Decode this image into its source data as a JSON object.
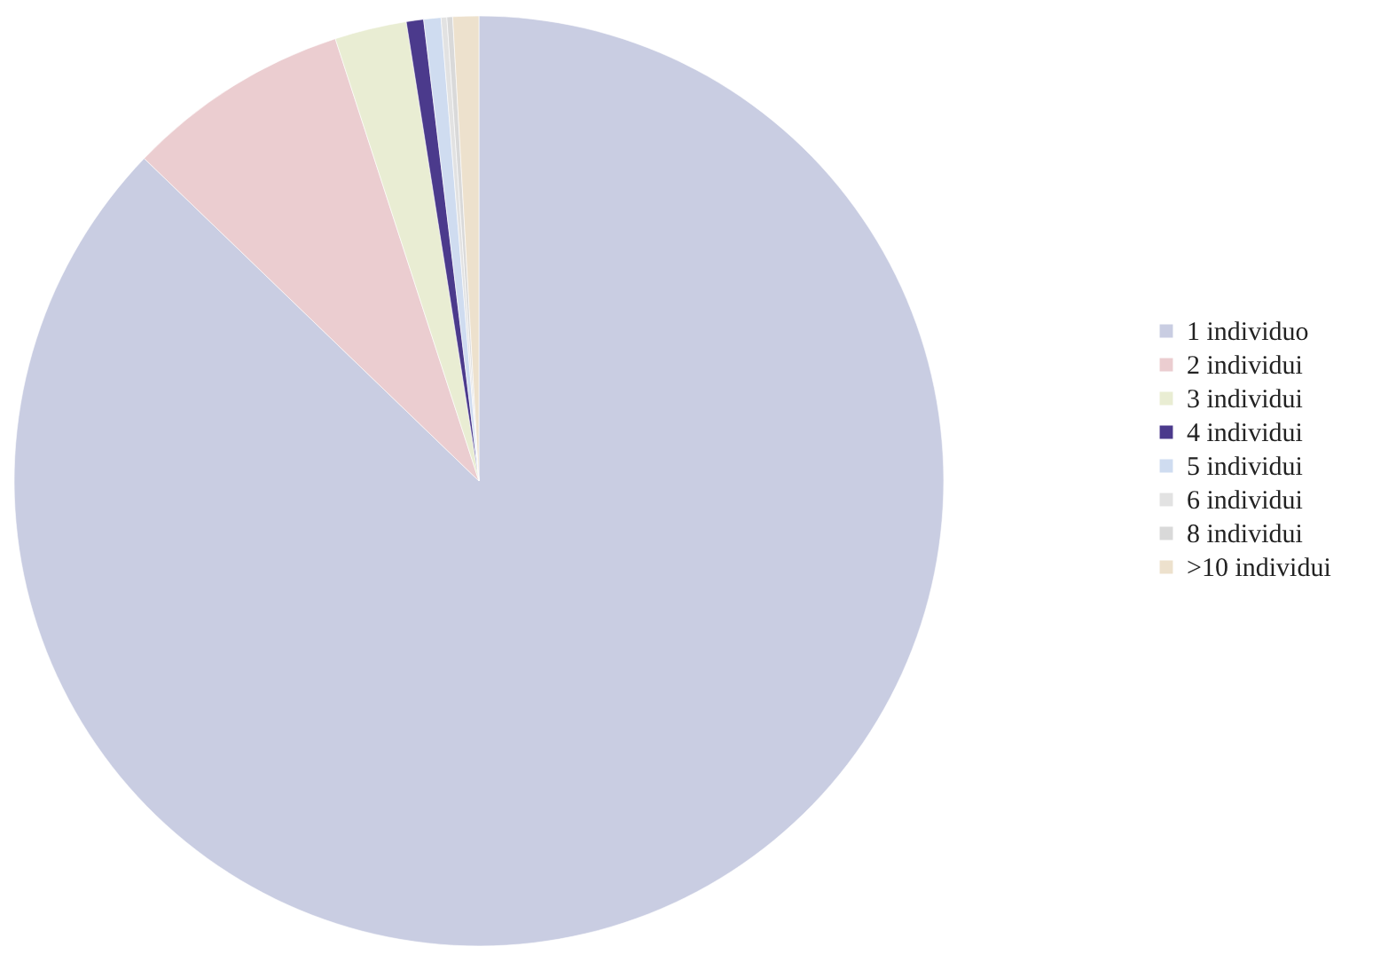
{
  "chart_data": {
    "type": "pie",
    "categories": [
      "1 individuo",
      "2 individui",
      "3 individui",
      "4 individui",
      "5 individui",
      "6 individui",
      "8 individui",
      ">10 individui"
    ],
    "values": [
      87.2,
      7.8,
      2.5,
      0.6,
      0.6,
      0.2,
      0.2,
      0.9
    ],
    "colors": [
      "#c9cde2",
      "#ebcdd0",
      "#e9edd3",
      "#4b3a8c",
      "#cfdcf0",
      "#e2e2e2",
      "#d9d9d9",
      "#ede1cd"
    ],
    "legend": "right"
  }
}
